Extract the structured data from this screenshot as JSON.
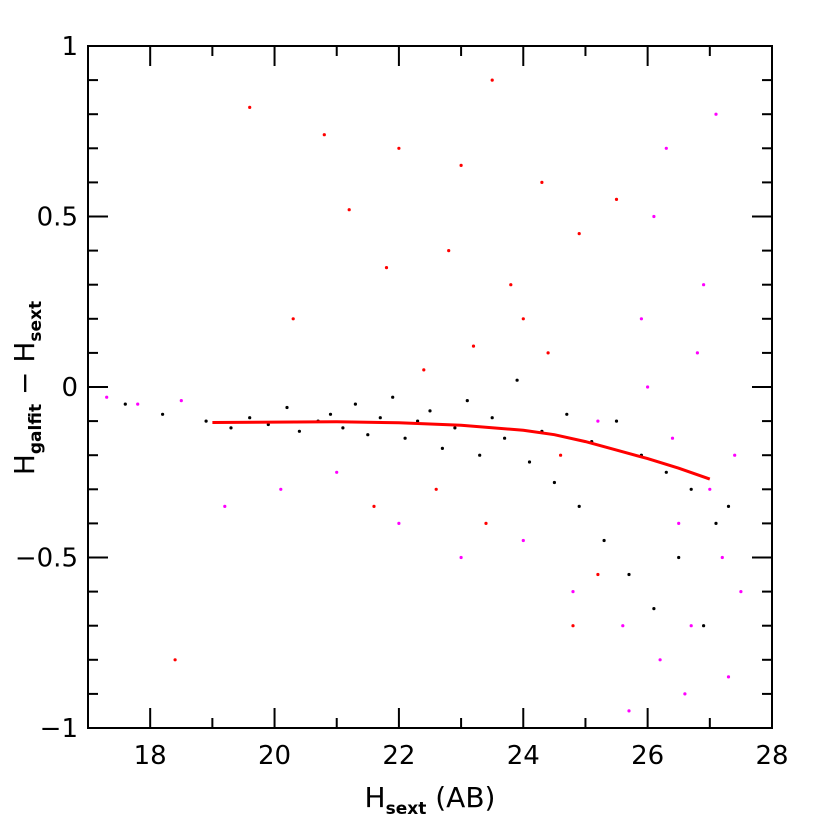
{
  "chart_data": {
    "type": "scatter",
    "title": "",
    "xlabel": {
      "main": "H",
      "sub": "sext",
      "suffix": " (AB)"
    },
    "ylabel": {
      "main1": "H",
      "sub1": "galfit",
      "mid": " − ",
      "main2": "H",
      "sub2": "sext"
    },
    "xlim": [
      17,
      28
    ],
    "ylim": [
      -1,
      1
    ],
    "xticks": [
      18,
      20,
      22,
      24,
      26,
      28
    ],
    "yticks": [
      -1,
      -0.5,
      0,
      0.5,
      1
    ],
    "xtick_labels": [
      "18",
      "20",
      "22",
      "24",
      "26",
      "28"
    ],
    "ytick_labels": [
      "−1",
      "−0.5",
      "0",
      "0.5",
      "1"
    ],
    "grid": false,
    "legend": "none",
    "series": [
      {
        "color": "#000000",
        "x": [
          17.6,
          18.2,
          18.9,
          19.3,
          19.6,
          19.9,
          20.2,
          20.4,
          20.7,
          20.9,
          21.1,
          21.3,
          21.5,
          21.7,
          21.9,
          22.1,
          22.3,
          22.5,
          22.7,
          22.9,
          23.1,
          23.3,
          23.5,
          23.7,
          23.9,
          24.1,
          24.3,
          24.5,
          24.7,
          24.9,
          25.1,
          25.3,
          25.5,
          25.7,
          25.9,
          26.1,
          26.3,
          26.5,
          26.7,
          26.9,
          27.1,
          27.3
        ],
        "y": [
          -0.05,
          -0.08,
          -0.1,
          -0.12,
          -0.09,
          -0.11,
          -0.06,
          -0.13,
          -0.1,
          -0.08,
          -0.12,
          -0.05,
          -0.14,
          -0.09,
          -0.03,
          -0.15,
          -0.1,
          -0.07,
          -0.18,
          -0.12,
          -0.04,
          -0.2,
          -0.09,
          -0.15,
          0.02,
          -0.22,
          -0.13,
          -0.28,
          -0.08,
          -0.35,
          -0.16,
          -0.45,
          -0.1,
          -0.55,
          -0.2,
          -0.65,
          -0.25,
          -0.5,
          -0.3,
          -0.7,
          -0.4,
          -0.35
        ]
      },
      {
        "color": "#ff00ff",
        "x": [
          17.3,
          17.8,
          18.5,
          19.2,
          20.1,
          21.0,
          22.0,
          23.0,
          24.0,
          24.8,
          25.2,
          25.6,
          25.9,
          26.2,
          26.4,
          26.6,
          26.8,
          27.0,
          27.2,
          27.4,
          27.5,
          26.9,
          26.5,
          26.1,
          25.7,
          27.1,
          26.7,
          26.3,
          27.3,
          26.0
        ],
        "y": [
          -0.03,
          -0.05,
          -0.04,
          -0.35,
          -0.3,
          -0.25,
          -0.4,
          -0.5,
          -0.45,
          -0.6,
          -0.1,
          -0.7,
          0.2,
          -0.8,
          -0.15,
          -0.9,
          0.1,
          -0.3,
          -0.5,
          -0.2,
          -0.6,
          0.3,
          -0.4,
          0.5,
          -0.95,
          0.8,
          -0.7,
          0.7,
          -0.85,
          0.0
        ]
      },
      {
        "color": "#ff0000",
        "x": [
          18.4,
          19.6,
          20.3,
          20.8,
          21.2,
          21.6,
          22.0,
          22.4,
          22.8,
          23.2,
          23.5,
          23.8,
          24.0,
          24.3,
          24.6,
          24.9,
          25.2,
          23.4,
          22.6,
          24.4,
          23.0,
          21.8,
          24.8,
          25.5
        ],
        "y": [
          -0.8,
          0.82,
          0.2,
          0.74,
          0.52,
          -0.35,
          0.7,
          0.05,
          0.4,
          0.12,
          0.9,
          0.3,
          0.2,
          0.6,
          -0.2,
          0.45,
          -0.55,
          -0.4,
          -0.3,
          0.1,
          0.65,
          0.35,
          -0.7,
          0.55
        ]
      },
      {
        "type": "line",
        "color": "#ff0000",
        "x": [
          19,
          20,
          21,
          22,
          23,
          24,
          24.5,
          25,
          25.5,
          26,
          26.5,
          27
        ],
        "y": [
          -0.104,
          -0.103,
          -0.102,
          -0.105,
          -0.112,
          -0.127,
          -0.14,
          -0.16,
          -0.185,
          -0.21,
          -0.238,
          -0.27
        ]
      }
    ]
  }
}
